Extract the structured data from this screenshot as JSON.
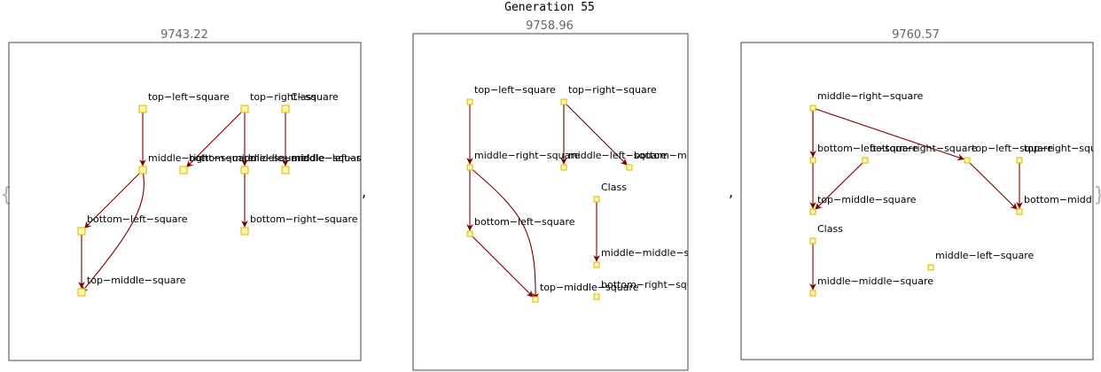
{
  "heading": "Generation 55",
  "separator": ",",
  "open_brace": "{",
  "close_brace": "}",
  "colors": {
    "edge": "#7a0000",
    "node_fill": "#fff6a8",
    "node_stroke": "#d9b800",
    "frame": "#444444"
  },
  "panels": [
    {
      "score": "9743.22",
      "nodes": [
        {
          "id": "a",
          "label": "top−left−square"
        },
        {
          "id": "b",
          "label": "top−right−square"
        },
        {
          "id": "c",
          "label": "Class"
        },
        {
          "id": "d",
          "label": "middle−right−square"
        },
        {
          "id": "e",
          "label": "bottom−middle−square"
        },
        {
          "id": "f",
          "label": "middle−middle−square"
        },
        {
          "id": "g",
          "label": "middle−left−square"
        },
        {
          "id": "h",
          "label": "bottom−left−square"
        },
        {
          "id": "i",
          "label": "bottom−right−square"
        },
        {
          "id": "j",
          "label": "top−middle−square"
        }
      ],
      "edges": [
        [
          "a",
          "d"
        ],
        [
          "b",
          "e"
        ],
        [
          "b",
          "f"
        ],
        [
          "c",
          "g"
        ],
        [
          "d",
          "h"
        ],
        [
          "d",
          "j"
        ],
        [
          "h",
          "j"
        ],
        [
          "f",
          "i"
        ]
      ]
    },
    {
      "score": "9758.96",
      "nodes": [
        {
          "id": "a",
          "label": "top−left−square"
        },
        {
          "id": "b",
          "label": "top−right−square"
        },
        {
          "id": "c",
          "label": "middle−right−square"
        },
        {
          "id": "d",
          "label": "middle−left−square"
        },
        {
          "id": "e",
          "label": "bottom−middle−square"
        },
        {
          "id": "f",
          "label": "Class"
        },
        {
          "id": "g",
          "label": "bottom−left−square"
        },
        {
          "id": "h",
          "label": "middle−middle−square"
        },
        {
          "id": "i",
          "label": "top−middle−square"
        },
        {
          "id": "j",
          "label": "bottom−right−square"
        }
      ],
      "edges": [
        [
          "a",
          "c"
        ],
        [
          "b",
          "d"
        ],
        [
          "b",
          "e"
        ],
        [
          "c",
          "g"
        ],
        [
          "c",
          "i"
        ],
        [
          "g",
          "i"
        ],
        [
          "f",
          "h"
        ]
      ]
    },
    {
      "score": "9760.57",
      "nodes": [
        {
          "id": "a",
          "label": "middle−right−square"
        },
        {
          "id": "b",
          "label": "bottom−left−square"
        },
        {
          "id": "c",
          "label": "bottom−right−square"
        },
        {
          "id": "d",
          "label": "top−left−square"
        },
        {
          "id": "e",
          "label": "top−right−square"
        },
        {
          "id": "f",
          "label": "top−middle−square"
        },
        {
          "id": "g",
          "label": "bottom−middle−square"
        },
        {
          "id": "h",
          "label": "Class"
        },
        {
          "id": "i",
          "label": "middle−left−square"
        },
        {
          "id": "j",
          "label": "middle−middle−square"
        }
      ],
      "edges": [
        [
          "a",
          "b"
        ],
        [
          "a",
          "f"
        ],
        [
          "a",
          "d"
        ],
        [
          "c",
          "f"
        ],
        [
          "d",
          "g"
        ],
        [
          "e",
          "g"
        ],
        [
          "h",
          "j"
        ]
      ]
    }
  ]
}
